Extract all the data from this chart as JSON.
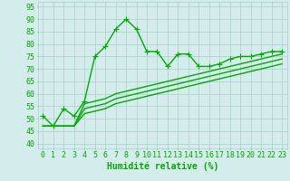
{
  "x": [
    0,
    1,
    2,
    3,
    4,
    5,
    6,
    7,
    8,
    9,
    10,
    11,
    12,
    13,
    14,
    15,
    16,
    17,
    18,
    19,
    20,
    21,
    22,
    23
  ],
  "line1": [
    51,
    47,
    54,
    51,
    57,
    75,
    79,
    86,
    90,
    86,
    77,
    77,
    71,
    76,
    76,
    71,
    71,
    72,
    74,
    75,
    75,
    76,
    77,
    77
  ],
  "line2": [
    47,
    47,
    47,
    47,
    56,
    57,
    58,
    60,
    61,
    62,
    63,
    64,
    65,
    66,
    67,
    68,
    69,
    70,
    71,
    72,
    73,
    74,
    75,
    76
  ],
  "line3": [
    47,
    47,
    47,
    47,
    54,
    55,
    56,
    58,
    59,
    60,
    61,
    62,
    63,
    64,
    65,
    66,
    67,
    68,
    69,
    70,
    71,
    72,
    73,
    74
  ],
  "line4": [
    47,
    47,
    47,
    47,
    52,
    53,
    54,
    56,
    57,
    58,
    59,
    60,
    61,
    62,
    63,
    64,
    65,
    66,
    67,
    68,
    69,
    70,
    71,
    72
  ],
  "ylabel_ticks": [
    40,
    45,
    50,
    55,
    60,
    65,
    70,
    75,
    80,
    85,
    90,
    95
  ],
  "xlim": [
    -0.5,
    23.5
  ],
  "ylim": [
    38,
    97
  ],
  "xlabel": "Humidité relative (%)",
  "bg_color": "#d4ecec",
  "grid_color": "#aacece",
  "line_color": "#00aa00",
  "marker": "+",
  "marker_size": 4,
  "line_width": 1.0,
  "xlabel_fontsize": 7,
  "tick_fontsize": 6
}
